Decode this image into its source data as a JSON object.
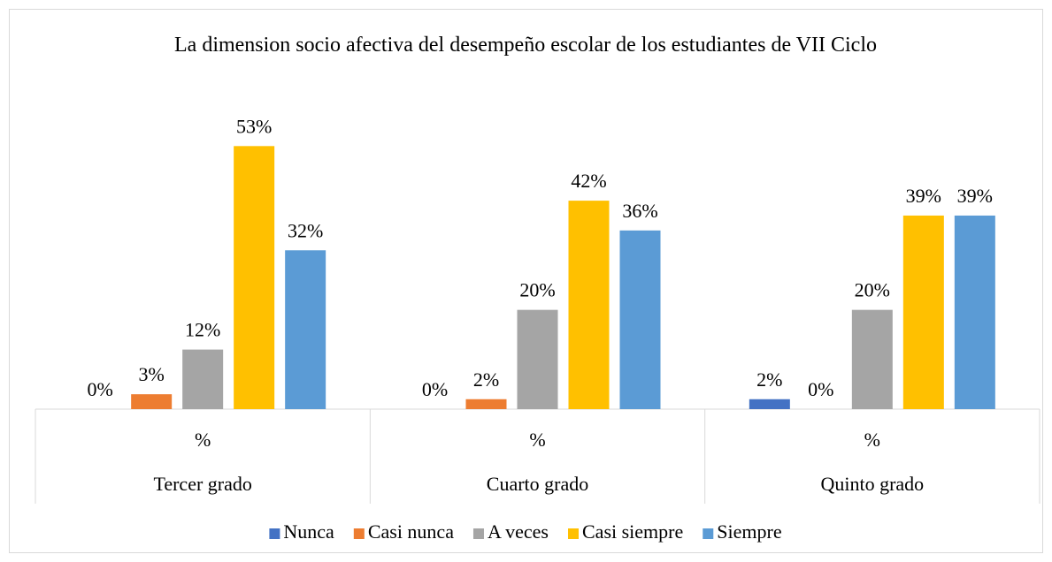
{
  "chart_data": {
    "type": "bar",
    "title": "La dimension socio afectiva del desempeño escolar de los estudiantes de VII Ciclo",
    "groups": [
      "Tercer grado",
      "Cuarto grado",
      "Quinto grado"
    ],
    "categories": [
      "%",
      "%",
      "%"
    ],
    "ylim": [
      0,
      60
    ],
    "legend": "bottom",
    "series": [
      {
        "name": "Nunca",
        "color": "#4472c4",
        "values": [
          0,
          0,
          2
        ],
        "value_labels": [
          "0%",
          "0%",
          "2%"
        ]
      },
      {
        "name": "Casi nunca",
        "color": "#ed7d31",
        "values": [
          3,
          2,
          0
        ],
        "value_labels": [
          "3%",
          "2%",
          "0%"
        ]
      },
      {
        "name": "A veces",
        "color": "#a5a5a5",
        "values": [
          12,
          20,
          20
        ],
        "value_labels": [
          "12%",
          "20%",
          "20%"
        ]
      },
      {
        "name": "Casi siempre",
        "color": "#ffc000",
        "values": [
          53,
          42,
          39
        ],
        "value_labels": [
          "53%",
          "42%",
          "39%"
        ]
      },
      {
        "name": "Siempre",
        "color": "#5b9bd5",
        "values": [
          32,
          36,
          39
        ],
        "value_labels": [
          "32%",
          "36%",
          "39%"
        ]
      }
    ]
  }
}
